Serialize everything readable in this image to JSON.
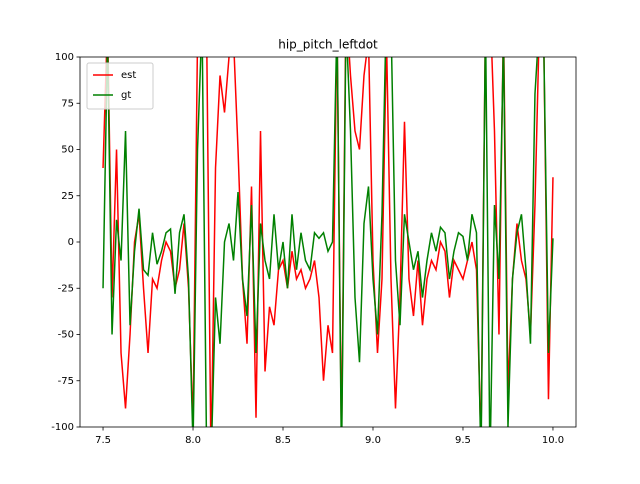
{
  "chart_data": {
    "type": "line",
    "title": "hip_pitch_leftdot",
    "x": [
      7.5,
      7.525,
      7.55,
      7.575,
      7.6,
      7.625,
      7.65,
      7.675,
      7.7,
      7.725,
      7.75,
      7.775,
      7.8,
      7.825,
      7.85,
      7.875,
      7.9,
      7.925,
      7.95,
      7.975,
      8.0,
      8.025,
      8.05,
      8.075,
      8.1,
      8.125,
      8.15,
      8.175,
      8.2,
      8.225,
      8.25,
      8.275,
      8.3,
      8.325,
      8.35,
      8.375,
      8.4,
      8.425,
      8.45,
      8.475,
      8.5,
      8.525,
      8.55,
      8.575,
      8.6,
      8.625,
      8.65,
      8.675,
      8.7,
      8.725,
      8.75,
      8.775,
      8.8,
      8.825,
      8.85,
      8.875,
      8.9,
      8.925,
      8.95,
      8.975,
      9.0,
      9.025,
      9.05,
      9.075,
      9.1,
      9.125,
      9.15,
      9.175,
      9.2,
      9.225,
      9.25,
      9.275,
      9.3,
      9.325,
      9.35,
      9.375,
      9.4,
      9.425,
      9.45,
      9.475,
      9.5,
      9.525,
      9.55,
      9.575,
      9.6,
      9.625,
      9.65,
      9.675,
      9.7,
      9.725,
      9.75,
      9.775,
      9.8,
      9.825,
      9.85,
      9.875,
      9.9,
      9.925,
      9.95,
      9.975,
      10.0
    ],
    "series": [
      {
        "name": "est",
        "color": "#ff0000",
        "values": [
          40,
          120,
          -30,
          50,
          -60,
          -90,
          -50,
          0,
          15,
          -25,
          -60,
          -20,
          -25,
          -10,
          0,
          -5,
          -25,
          -15,
          10,
          -25,
          -100,
          110,
          130,
          120,
          -120,
          40,
          90,
          70,
          100,
          110,
          50,
          -20,
          -55,
          30,
          -95,
          60,
          -70,
          -35,
          -45,
          -15,
          -10,
          -25,
          -5,
          -20,
          -15,
          -25,
          -20,
          -10,
          -30,
          -75,
          -45,
          -60,
          120,
          -110,
          130,
          90,
          60,
          50,
          90,
          110,
          -10,
          -60,
          -20,
          110,
          -20,
          -90,
          -30,
          65,
          -20,
          -40,
          -10,
          -45,
          -20,
          -10,
          -15,
          0,
          -5,
          -30,
          -10,
          -15,
          -20,
          -10,
          0,
          -15,
          -110,
          120,
          130,
          60,
          -50,
          120,
          -80,
          -20,
          10,
          -10,
          -20,
          -50,
          20,
          120,
          100,
          -85,
          35
        ]
      },
      {
        "name": "gt",
        "color": "#008000",
        "values": [
          -25,
          110,
          -50,
          12,
          -10,
          60,
          -45,
          -5,
          18,
          -15,
          -18,
          5,
          -12,
          -5,
          5,
          7,
          -28,
          5,
          15,
          -20,
          -110,
          50,
          120,
          -110,
          -120,
          -30,
          -55,
          0,
          10,
          -10,
          27,
          -20,
          -40,
          20,
          -60,
          10,
          -10,
          -20,
          15,
          -15,
          0,
          -25,
          15,
          -15,
          5,
          -10,
          -15,
          5,
          2,
          5,
          -5,
          0,
          120,
          -120,
          120,
          60,
          -30,
          -65,
          10,
          30,
          -20,
          -50,
          15,
          130,
          120,
          -10,
          -45,
          15,
          0,
          -15,
          -5,
          -30,
          -10,
          5,
          -5,
          8,
          5,
          -20,
          -5,
          5,
          3,
          -10,
          15,
          5,
          -120,
          120,
          -120,
          20,
          -20,
          110,
          -100,
          -20,
          5,
          15,
          -15,
          -55,
          80,
          120,
          100,
          -60,
          2
        ]
      }
    ],
    "xlim": [
      7.372,
      10.128
    ],
    "ylim": [
      -100,
      100
    ],
    "xticks": [
      {
        "value": 7.5,
        "label": "7.5"
      },
      {
        "value": 8.0,
        "label": "8.0"
      },
      8.5,
      {
        "value": 9.0,
        "label": "9.0"
      },
      9.5,
      {
        "value": 10.0,
        "label": "10.0"
      }
    ],
    "yticks": [
      -100,
      -75,
      -50,
      -25,
      0,
      25,
      50,
      75,
      100
    ],
    "legend": "upper left"
  }
}
